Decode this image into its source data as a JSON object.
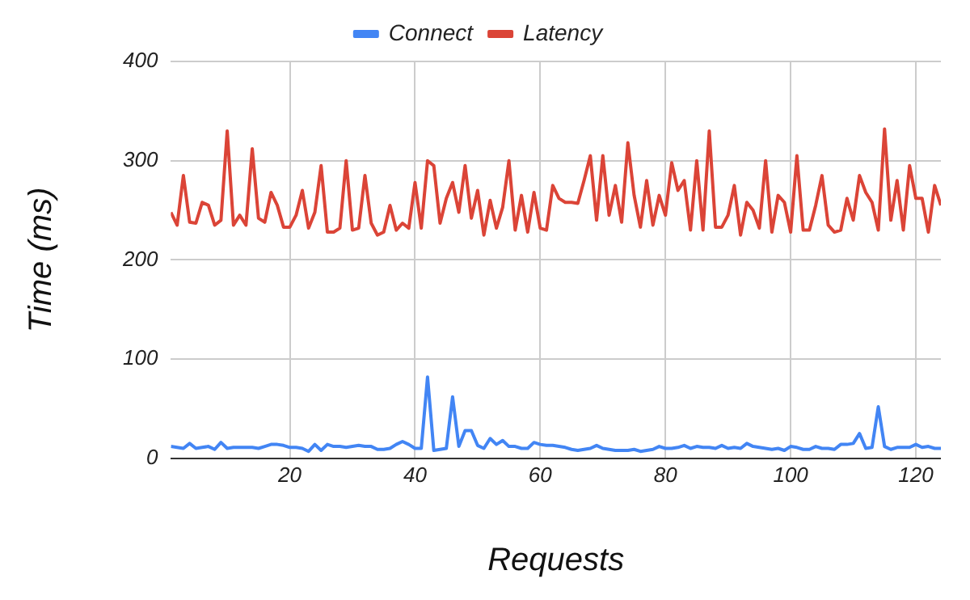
{
  "chart_data": {
    "type": "line",
    "xlabel": "Requests",
    "ylabel": "Time (ms)",
    "legend": "top",
    "grid": true,
    "marker": "none",
    "x": [
      1,
      2,
      3,
      4,
      5,
      6,
      7,
      8,
      9,
      10,
      11,
      12,
      13,
      14,
      15,
      16,
      17,
      18,
      19,
      20,
      21,
      22,
      23,
      24,
      25,
      26,
      27,
      28,
      29,
      30,
      31,
      32,
      33,
      34,
      35,
      36,
      37,
      38,
      39,
      40,
      41,
      42,
      43,
      44,
      45,
      46,
      47,
      48,
      49,
      50,
      51,
      52,
      53,
      54,
      55,
      56,
      57,
      58,
      59,
      60,
      61,
      62,
      63,
      64,
      65,
      66,
      67,
      68,
      69,
      70,
      71,
      72,
      73,
      74,
      75,
      76,
      77,
      78,
      79,
      80,
      81,
      82,
      83,
      84,
      85,
      86,
      87,
      88,
      89,
      90,
      91,
      92,
      93,
      94,
      95,
      96,
      97,
      98,
      99,
      100,
      101,
      102,
      103,
      104,
      105,
      106,
      107,
      108,
      109,
      110,
      111,
      112,
      113,
      114,
      115,
      116,
      117,
      118,
      119,
      120,
      121,
      122,
      123,
      124
    ],
    "xlim": [
      1,
      124
    ],
    "xticks": [
      20,
      40,
      60,
      80,
      100,
      120
    ],
    "ylim": [
      0,
      400
    ],
    "yticks": [
      0,
      100,
      200,
      300,
      400
    ],
    "series": [
      {
        "name": "Connect",
        "color": "#4285f4",
        "values": [
          12,
          11,
          10,
          15,
          10,
          11,
          12,
          9,
          16,
          10,
          11,
          11,
          11,
          11,
          10,
          12,
          14,
          14,
          13,
          11,
          11,
          10,
          7,
          14,
          8,
          14,
          12,
          12,
          11,
          12,
          13,
          12,
          12,
          9,
          9,
          10,
          14,
          17,
          14,
          10,
          10,
          82,
          8,
          9,
          10,
          62,
          12,
          28,
          28,
          13,
          10,
          20,
          14,
          18,
          12,
          12,
          10,
          10,
          16,
          14,
          13,
          13,
          12,
          11,
          9,
          8,
          9,
          10,
          13,
          10,
          9,
          8,
          8,
          8,
          9,
          7,
          8,
          9,
          12,
          10,
          10,
          11,
          13,
          10,
          12,
          11,
          11,
          10,
          13,
          10,
          11,
          10,
          15,
          12,
          11,
          10,
          9,
          10,
          8,
          12,
          11,
          9,
          9,
          12,
          10,
          10,
          9,
          14,
          14,
          15,
          25,
          10,
          11,
          52,
          12,
          9,
          11,
          11,
          11,
          14,
          11,
          12,
          10,
          10
        ]
      },
      {
        "name": "Latency",
        "color": "#db4437",
        "values": [
          248,
          235,
          285,
          238,
          237,
          258,
          255,
          235,
          240,
          330,
          235,
          245,
          235,
          312,
          242,
          238,
          268,
          255,
          233,
          233,
          245,
          270,
          232,
          248,
          295,
          228,
          228,
          232,
          300,
          230,
          232,
          285,
          237,
          225,
          228,
          255,
          230,
          237,
          232,
          278,
          232,
          300,
          295,
          237,
          262,
          278,
          248,
          295,
          242,
          270,
          225,
          260,
          232,
          253,
          300,
          230,
          265,
          228,
          268,
          232,
          230,
          275,
          262,
          258,
          258,
          257,
          280,
          305,
          240,
          305,
          245,
          275,
          238,
          318,
          265,
          233,
          280,
          235,
          265,
          245,
          298,
          270,
          280,
          230,
          300,
          230,
          330,
          233,
          233,
          245,
          275,
          225,
          258,
          250,
          232,
          300,
          228,
          265,
          258,
          228,
          305,
          230,
          230,
          255,
          285,
          235,
          228,
          230,
          262,
          240,
          285,
          268,
          258,
          230,
          332,
          240,
          280,
          230,
          295,
          262,
          262,
          228,
          275,
          255
        ]
      }
    ]
  }
}
